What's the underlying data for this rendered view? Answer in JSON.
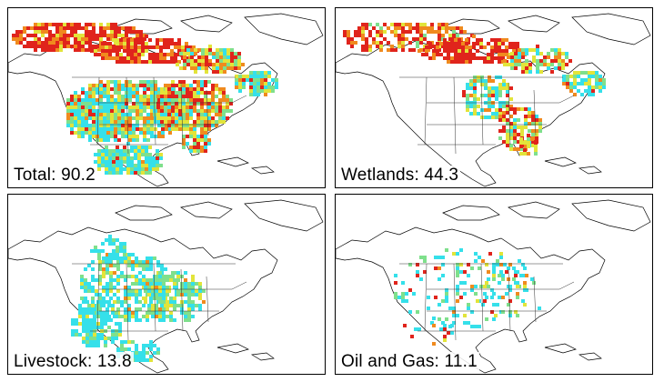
{
  "panels": [
    {
      "label": "Total: 90.2"
    },
    {
      "label": "Wetlands: 44.3"
    },
    {
      "label": "Livestock: 13.8"
    },
    {
      "label": "Oil and Gas: 11.1"
    }
  ],
  "color_scale": [
    "#35e0ea",
    "#7fe08c",
    "#e2e43a",
    "#f08a1e",
    "#e0241c"
  ]
}
